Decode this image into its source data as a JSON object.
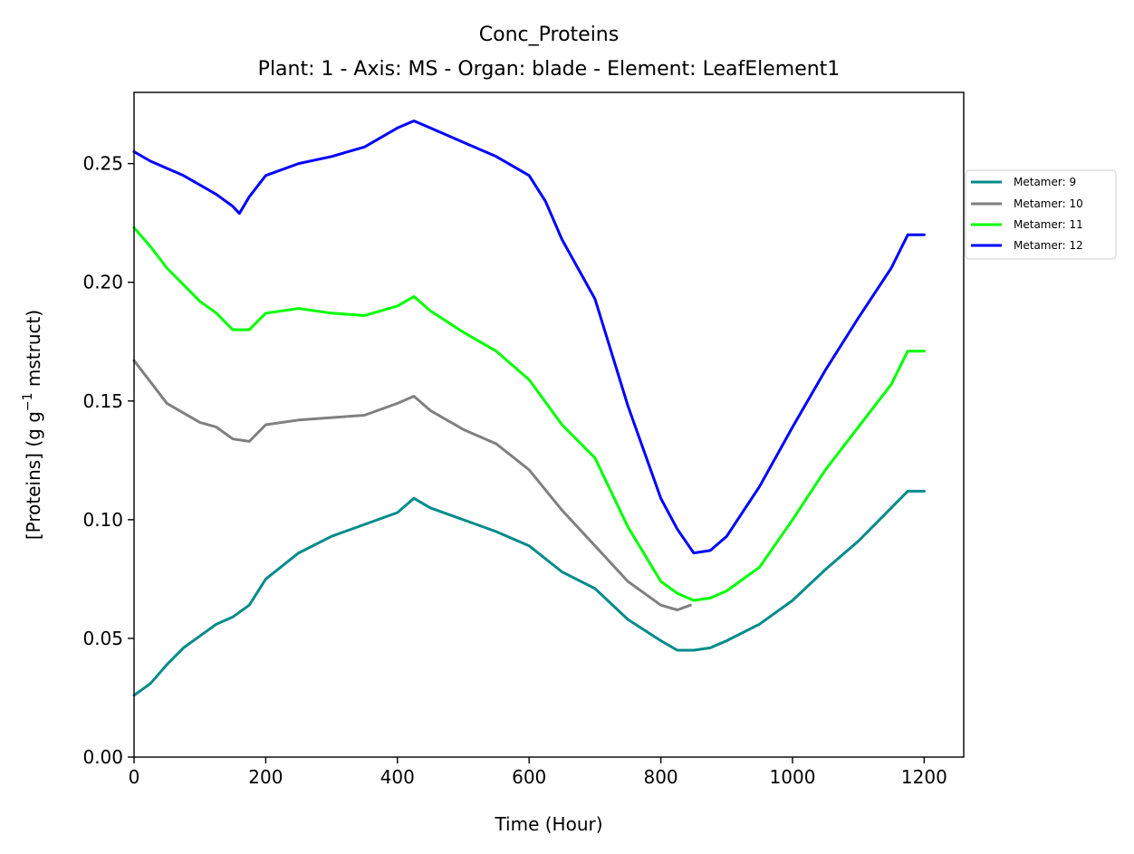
{
  "chart_data": {
    "type": "line",
    "title": "Conc_Proteins",
    "subtitle": "Plant: 1 - Axis: MS - Organ: blade - Element: LeafElement1",
    "xlabel": "Time (Hour)",
    "ylabel_prefix": "[Proteins] (g g",
    "ylabel_sup": "−1",
    "ylabel_suffix": " mstruct)",
    "xlim": [
      0,
      1260
    ],
    "ylim": [
      0,
      0.28
    ],
    "xticks": [
      0,
      200,
      400,
      600,
      800,
      1000,
      1200
    ],
    "xtick_labels": [
      "0",
      "200",
      "400",
      "600",
      "800",
      "1000",
      "1200"
    ],
    "yticks": [
      0,
      0.05,
      0.1,
      0.15,
      0.2,
      0.25
    ],
    "ytick_labels": [
      "0.00",
      "0.05",
      "0.10",
      "0.15",
      "0.20",
      "0.25"
    ],
    "grid": false,
    "legend_position": "outside-right",
    "series": [
      {
        "name": "Metamer: 9",
        "color": "#008b8b",
        "x": [
          0,
          25,
          50,
          75,
          100,
          125,
          150,
          175,
          200,
          250,
          300,
          350,
          400,
          425,
          450,
          500,
          550,
          600,
          650,
          700,
          750,
          800,
          825,
          850,
          875,
          900,
          950,
          1000,
          1050,
          1100,
          1150,
          1175,
          1200
        ],
        "y": [
          0.026,
          0.031,
          0.039,
          0.046,
          0.051,
          0.056,
          0.059,
          0.064,
          0.075,
          0.086,
          0.093,
          0.098,
          0.103,
          0.109,
          0.105,
          0.1,
          0.095,
          0.089,
          0.078,
          0.071,
          0.058,
          0.049,
          0.045,
          0.045,
          0.046,
          0.049,
          0.056,
          0.066,
          0.079,
          0.091,
          0.105,
          0.112,
          0.112
        ]
      },
      {
        "name": "Metamer: 10",
        "color": "#808080",
        "x": [
          0,
          25,
          50,
          75,
          100,
          125,
          150,
          175,
          200,
          250,
          300,
          350,
          400,
          425,
          450,
          500,
          550,
          600,
          650,
          700,
          750,
          800,
          825,
          845
        ],
        "y": [
          0.167,
          0.158,
          0.149,
          0.145,
          0.141,
          0.139,
          0.134,
          0.133,
          0.14,
          0.142,
          0.143,
          0.144,
          0.149,
          0.152,
          0.146,
          0.138,
          0.132,
          0.121,
          0.104,
          0.089,
          0.074,
          0.064,
          0.062,
          0.064
        ]
      },
      {
        "name": "Metamer: 11",
        "color": "#00ff00",
        "x": [
          0,
          25,
          50,
          75,
          100,
          125,
          150,
          175,
          200,
          250,
          300,
          350,
          400,
          425,
          450,
          500,
          550,
          600,
          650,
          700,
          750,
          800,
          825,
          850,
          875,
          900,
          950,
          1000,
          1050,
          1100,
          1150,
          1175,
          1200
        ],
        "y": [
          0.223,
          0.215,
          0.206,
          0.199,
          0.192,
          0.187,
          0.18,
          0.18,
          0.187,
          0.189,
          0.187,
          0.186,
          0.19,
          0.194,
          0.188,
          0.179,
          0.171,
          0.159,
          0.14,
          0.126,
          0.097,
          0.074,
          0.069,
          0.066,
          0.067,
          0.07,
          0.08,
          0.1,
          0.121,
          0.139,
          0.157,
          0.171,
          0.171
        ]
      },
      {
        "name": "Metamer: 12",
        "color": "#0000ff",
        "x": [
          0,
          25,
          50,
          75,
          100,
          125,
          150,
          160,
          175,
          200,
          250,
          300,
          350,
          400,
          425,
          450,
          500,
          550,
          600,
          625,
          650,
          700,
          750,
          800,
          825,
          850,
          875,
          900,
          950,
          1000,
          1050,
          1100,
          1150,
          1175,
          1200
        ],
        "y": [
          0.255,
          0.251,
          0.248,
          0.245,
          0.241,
          0.237,
          0.232,
          0.229,
          0.236,
          0.245,
          0.25,
          0.253,
          0.257,
          0.265,
          0.268,
          0.265,
          0.259,
          0.253,
          0.245,
          0.234,
          0.218,
          0.193,
          0.148,
          0.109,
          0.096,
          0.086,
          0.087,
          0.093,
          0.114,
          0.139,
          0.163,
          0.185,
          0.206,
          0.22,
          0.22
        ]
      }
    ]
  }
}
